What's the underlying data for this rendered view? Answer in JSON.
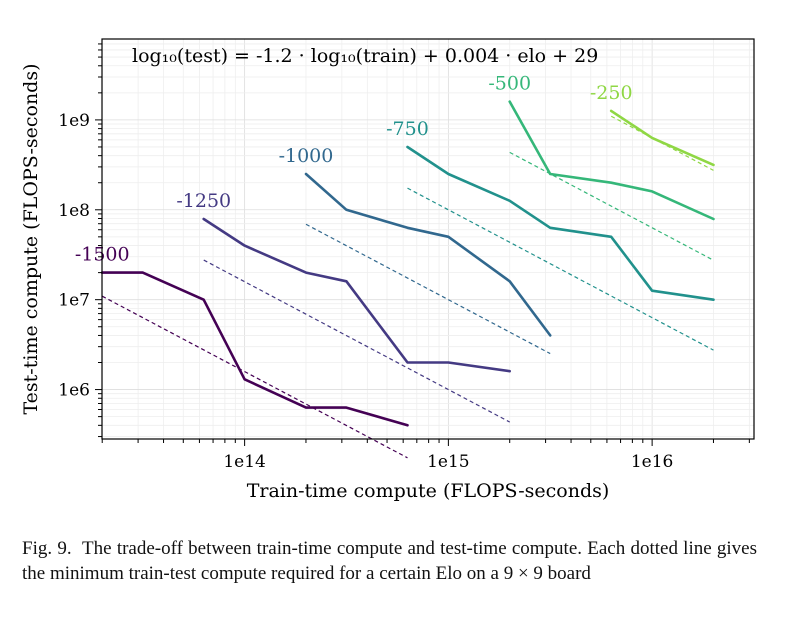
{
  "chart_data": {
    "type": "line",
    "title": "",
    "annotation": "log₁₀(test) = -1.2 · log₁₀(train) + 0.004 · elo + 29",
    "xlabel": "Train-time compute (FLOPS-seconds)",
    "ylabel": "Test-time compute (FLOPS-seconds)",
    "xscale": "log",
    "yscale": "log",
    "xlim_log10": [
      13.3,
      16.5
    ],
    "ylim_log10": [
      5.45,
      9.9
    ],
    "x_ticks": [
      {
        "log": 14,
        "label": "1e14"
      },
      {
        "log": 15,
        "label": "1e15"
      },
      {
        "log": 16,
        "label": "1e16"
      }
    ],
    "y_ticks": [
      {
        "log": 6,
        "label": "1e6"
      },
      {
        "log": 7,
        "label": "1e7"
      },
      {
        "log": 8,
        "label": "1e8"
      },
      {
        "log": 9,
        "label": "1e9"
      }
    ],
    "grid": true,
    "fit": {
      "a": -1.2,
      "b": 0.004,
      "c": 29
    },
    "series": [
      {
        "name": "-1500",
        "elo": -1500,
        "color": "#440154",
        "x": [
          20000000000000.0,
          31600000000000.0,
          63000000000000.0,
          100000000000000.0,
          200000000000000.0,
          316000000000000.0,
          630000000000000.0
        ],
        "y": [
          20000000.0,
          20000000.0,
          10000000.0,
          1300000.0,
          630000.0,
          630000.0,
          400000.0
        ]
      },
      {
        "name": "-1250",
        "elo": -1250,
        "color": "#443a83",
        "x": [
          63000000000000.0,
          100000000000000.0,
          200000000000000.0,
          316000000000000.0,
          630000000000000.0,
          1000000000000000.0,
          2000000000000000.0
        ],
        "y": [
          79000000.0,
          40000000.0,
          20000000.0,
          16000000.0,
          2000000.0,
          2000000.0,
          1600000.0
        ]
      },
      {
        "name": "-1000",
        "elo": -1000,
        "color": "#31688e",
        "x": [
          200000000000000.0,
          316000000000000.0,
          630000000000000.0,
          1000000000000000.0,
          2000000000000000.0,
          3160000000000000.0
        ],
        "y": [
          250000000.0,
          100000000.0,
          63000000.0,
          50000000.0,
          16000000.0,
          4000000.0
        ]
      },
      {
        "name": "-750",
        "elo": -750,
        "color": "#21918c",
        "x": [
          630000000000000.0,
          1000000000000000.0,
          2000000000000000.0,
          3160000000000000.0,
          6300000000000000.0,
          1e+16,
          2e+16
        ],
        "y": [
          500000000.0,
          250000000.0,
          126000000.0,
          63000000.0,
          50000000.0,
          12600000.0,
          10000000.0
        ]
      },
      {
        "name": "-500",
        "elo": -500,
        "color": "#35b779",
        "x": [
          2000000000000000.0,
          3160000000000000.0,
          6300000000000000.0,
          1e+16,
          2e+16
        ],
        "y": [
          1600000000.0,
          250000000.0,
          200000000.0,
          160000000.0,
          79000000.0
        ]
      },
      {
        "name": "-250",
        "elo": -250,
        "color": "#8fd744",
        "x": [
          6300000000000000.0,
          1e+16,
          2e+16
        ],
        "y": [
          1260000000.0,
          630000000.0,
          316000000.0
        ]
      }
    ]
  },
  "caption": {
    "label": "Fig. 9.",
    "text": "The trade-off between train-time compute and test-time compute. Each dotted line gives the minimum train-test compute required for a certain Elo on a 9 × 9 board"
  }
}
